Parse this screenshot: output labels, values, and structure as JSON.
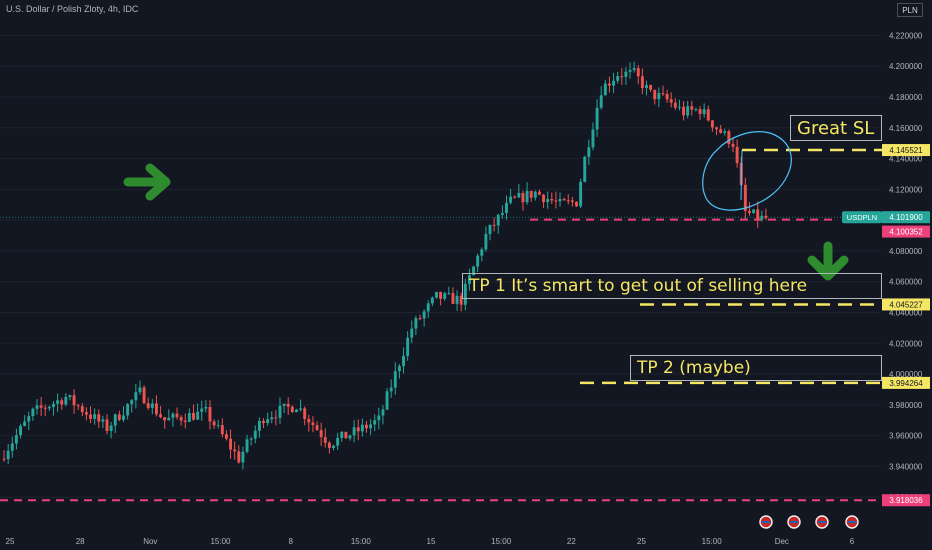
{
  "header": {
    "title": "U.S. Dollar / Polish Zloty, 4h, IDC",
    "currency": "PLN"
  },
  "colors": {
    "background": "#131722",
    "up": "#26a69a",
    "down": "#ef5350",
    "yellow_dash": "#f5e663",
    "pink_dash": "#ec407a",
    "green_arrow": "#2e8b2e",
    "drawing": "#4fc3f7"
  },
  "annotations": {
    "great_sl": "Great SL",
    "tp1": "TP 1 It’s smart to get out of selling here",
    "tp2": "TP 2 (maybe)"
  },
  "chart_data": {
    "type": "candlestick",
    "ylim": [
      3.9,
      4.23
    ],
    "y_ticks": [
      "4.220000",
      "4.200000",
      "4.180000",
      "4.160000",
      "4.140000",
      "4.120000",
      "4.100000",
      "4.080000",
      "4.060000",
      "4.040000",
      "4.020000",
      "4.000000",
      "3.980000",
      "3.960000",
      "3.940000",
      "3.920000"
    ],
    "x_ticks": [
      "25",
      "28",
      "Nov",
      "15:00",
      "8",
      "15:00",
      "15",
      "15:00",
      "22",
      "25",
      "15:00",
      "Dec",
      "6"
    ],
    "price_labels": [
      {
        "text": "USDPLN",
        "value": "4.101900"
      },
      {
        "text": "",
        "value": "4.100352"
      },
      {
        "text": "",
        "value": "4.145521"
      },
      {
        "text": "",
        "value": "4.045227"
      },
      {
        "text": "",
        "value": "3.994264"
      },
      {
        "text": "",
        "value": "3.918036"
      }
    ],
    "levels": [
      {
        "name": "great-sl-line",
        "value": 4.145521,
        "kind": "yellow"
      },
      {
        "name": "entry-line",
        "value": 4.100352,
        "kind": "pink"
      },
      {
        "name": "tp1-line",
        "value": 4.045227,
        "kind": "yellow"
      },
      {
        "name": "tp2-line",
        "value": 3.994264,
        "kind": "yellow"
      },
      {
        "name": "bottom-line",
        "value": 3.918036,
        "kind": "pink"
      }
    ],
    "anchors": [
      [
        0,
        3.945
      ],
      [
        8,
        3.975
      ],
      [
        16,
        3.985
      ],
      [
        26,
        3.965
      ],
      [
        34,
        3.988
      ],
      [
        40,
        3.97
      ],
      [
        50,
        3.975
      ],
      [
        58,
        3.945
      ],
      [
        64,
        3.972
      ],
      [
        72,
        3.98
      ],
      [
        80,
        3.955
      ],
      [
        86,
        3.962
      ],
      [
        92,
        3.97
      ],
      [
        100,
        4.03
      ],
      [
        106,
        4.05
      ],
      [
        112,
        4.048
      ],
      [
        118,
        4.09
      ],
      [
        124,
        4.112
      ],
      [
        130,
        4.118
      ],
      [
        136,
        4.11
      ],
      [
        140,
        4.112
      ],
      [
        142,
        4.14
      ],
      [
        146,
        4.185
      ],
      [
        150,
        4.195
      ],
      [
        154,
        4.195
      ],
      [
        158,
        4.182
      ],
      [
        162,
        4.178
      ],
      [
        166,
        4.17
      ],
      [
        170,
        4.172
      ],
      [
        174,
        4.16
      ],
      [
        178,
        4.15
      ],
      [
        181,
        4.105
      ],
      [
        185,
        4.101
      ]
    ],
    "candle_count": 186
  }
}
